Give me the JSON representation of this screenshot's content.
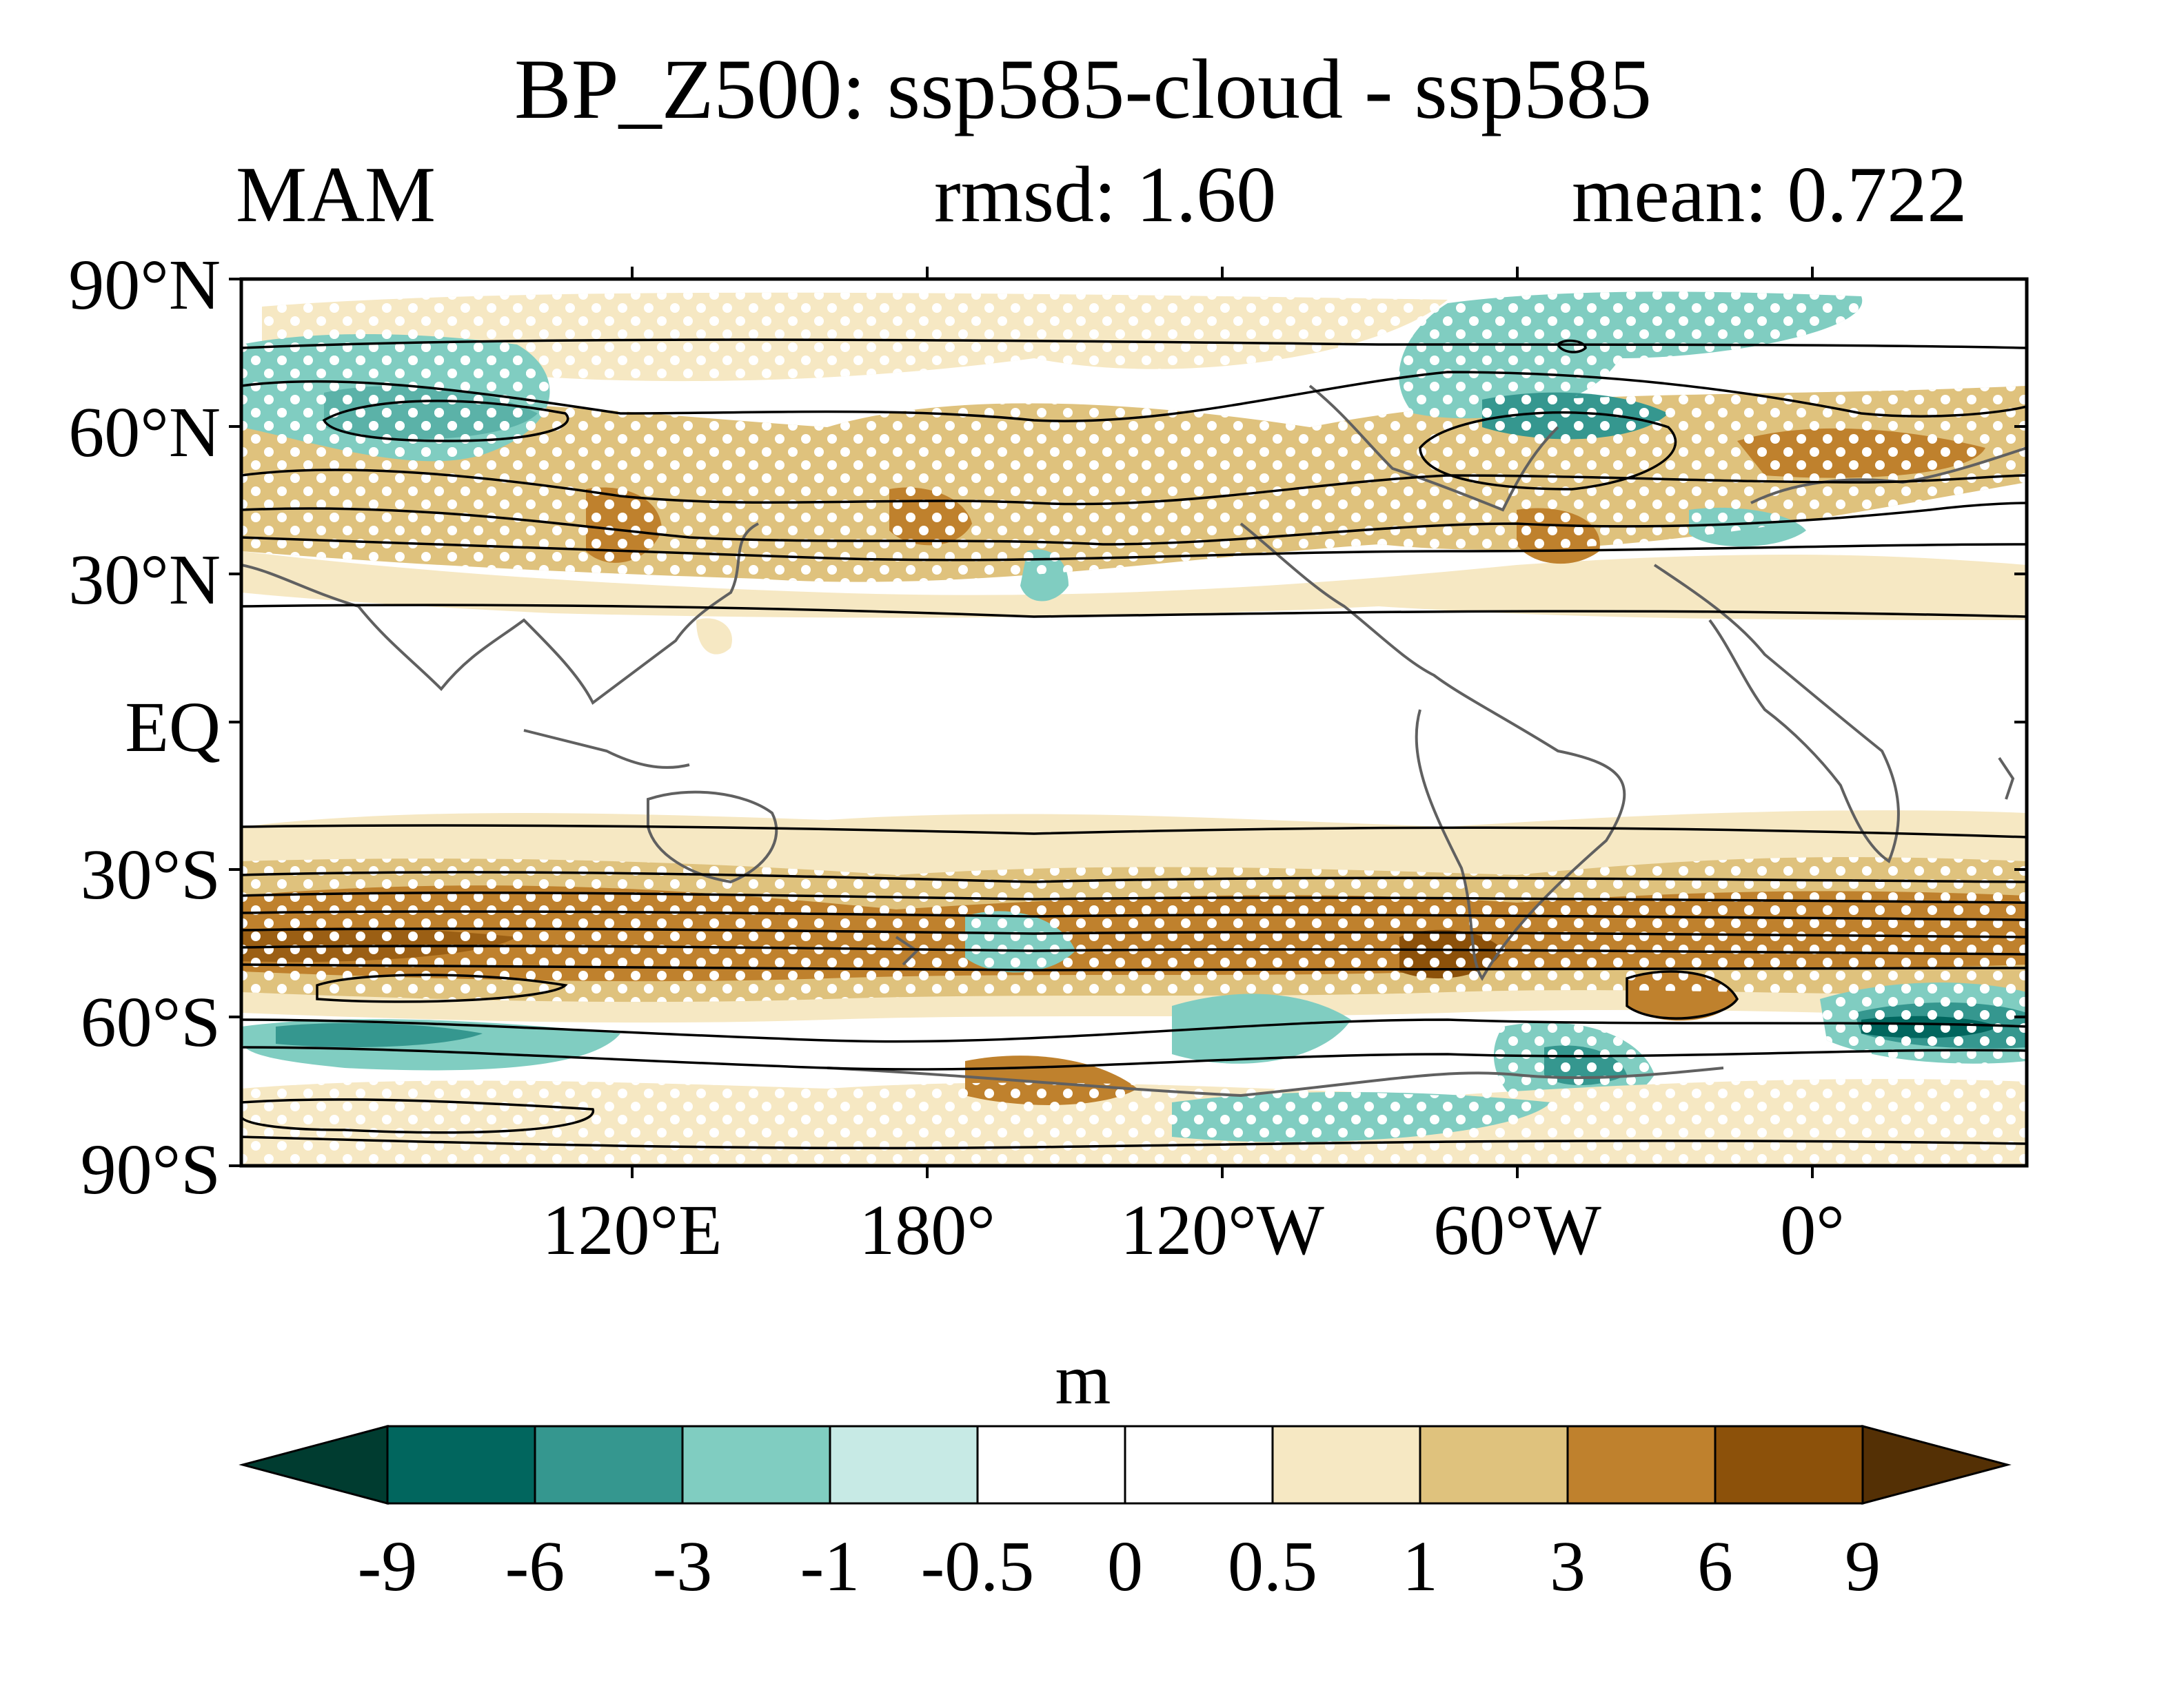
{
  "map": {
    "title": "BP_Z500: ssp585-cloud - ssp585",
    "season": "MAM",
    "rmsd": "rmsd: 1.60",
    "mean": "mean: 0.722",
    "lat_labels": [
      "90°N",
      "60°N",
      "30°N",
      "EQ",
      "30°S",
      "60°S",
      "90°S"
    ],
    "lon_labels": [
      "120°E",
      "180°",
      "120°W",
      "60°W",
      "0°"
    ],
    "projection": "cylindrical equidistant, central longitude 200°E"
  },
  "colorbar": {
    "unit": "m",
    "levels": [
      "-9",
      "-6",
      "-3",
      "-1",
      "-0.5",
      "0",
      "0.5",
      "1",
      "3",
      "6",
      "9"
    ],
    "colors": [
      "#003c30",
      "#01665e",
      "#35978f",
      "#80cdc1",
      "#c7eae5",
      "#ffffff",
      "#ffffff",
      "#f6e8c3",
      "#dfc27d",
      "#bf812d",
      "#8c510a",
      "#543005"
    ]
  },
  "shading": {
    "stippling": "white dots mark significant regions",
    "contours": "black lines show climatological Z500 structure"
  }
}
